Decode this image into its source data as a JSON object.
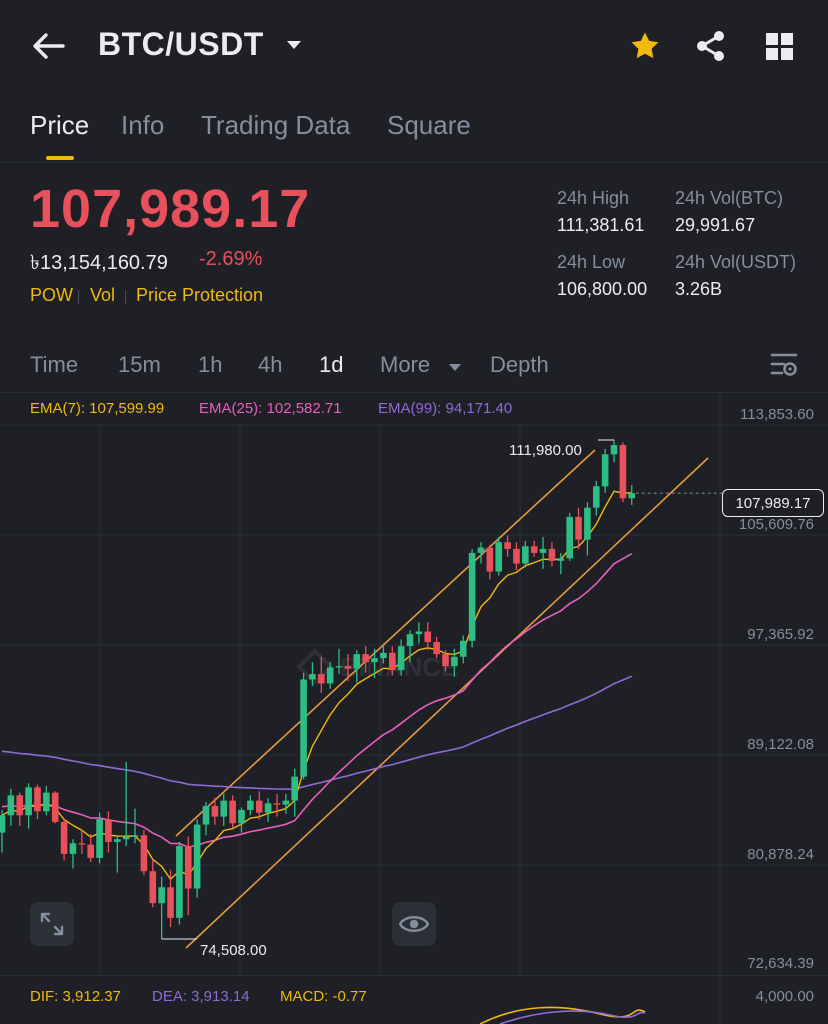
{
  "header": {
    "title": "BTC/USDT"
  },
  "tabs": [
    {
      "label": "Price",
      "active": true
    },
    {
      "label": "Info"
    },
    {
      "label": "Trading Data"
    },
    {
      "label": "Square"
    }
  ],
  "price": {
    "last": "107,989.17",
    "fiat": "৳13,154,160.79",
    "change": "-2.69%"
  },
  "tags": [
    "POW",
    "Vol",
    "Price Protection"
  ],
  "stats": {
    "high_label": "24h High",
    "high_value": "111,381.61",
    "volbtc_label": "24h Vol(BTC)",
    "volbtc_value": "29,991.67",
    "low_label": "24h Low",
    "low_value": "106,800.00",
    "volusdt_label": "24h Vol(USDT)",
    "volusdt_value": "3.26B"
  },
  "timeframes": [
    "Time",
    "15m",
    "1h",
    "4h",
    "1d",
    "More",
    "Depth"
  ],
  "active_timeframe": "1d",
  "ema": {
    "ema7": "EMA(7): 107,599.99",
    "ema25": "EMA(25): 102,582.71",
    "ema99": "EMA(99): 94,171.40"
  },
  "axis": [
    "113,853.60",
    "105,609.76",
    "97,365.92",
    "89,122.08",
    "80,878.24",
    "72,634.39"
  ],
  "markers": {
    "high": "111,980.00",
    "low": "74,508.00",
    "current": "107,989.17"
  },
  "macd": {
    "dif": "DIF: 3,912.37",
    "dea": "DEA: 3,913.14",
    "macd": "MACD: -0.77",
    "axis_top": "4,000.00"
  },
  "colors": {
    "up": "#2ebd85",
    "down": "#e8505b",
    "accent": "#f0b90b",
    "ema7": "#f0b90b",
    "ema25": "#e95fbb",
    "ema99": "#8e6bd6",
    "channel": "#e89a3c"
  },
  "chart_data": {
    "type": "candlestick",
    "y_axis_range": [
      72634.39,
      113853.6
    ],
    "candles": [
      [
        82500,
        84200,
        81000,
        83800
      ],
      [
        83800,
        85800,
        83000,
        85300
      ],
      [
        85300,
        85500,
        83000,
        83800
      ],
      [
        83800,
        86200,
        82800,
        85900
      ],
      [
        85900,
        86100,
        83500,
        84100
      ],
      [
        84100,
        86000,
        83800,
        85500
      ],
      [
        85500,
        85600,
        83200,
        83300
      ],
      [
        83300,
        83500,
        80400,
        80900
      ],
      [
        80900,
        82000,
        79800,
        81700
      ],
      [
        81700,
        82700,
        80900,
        81600
      ],
      [
        81600,
        82400,
        80300,
        80600
      ],
      [
        80600,
        84000,
        80200,
        83500
      ],
      [
        83500,
        84100,
        81000,
        81800
      ],
      [
        81800,
        82200,
        79500,
        82000
      ],
      [
        82000,
        87800,
        81500,
        82200
      ],
      [
        82200,
        84300,
        81700,
        82300
      ],
      [
        82300,
        82700,
        79300,
        79600
      ],
      [
        79600,
        80500,
        76900,
        77200
      ],
      [
        77200,
        79200,
        74508,
        78400
      ],
      [
        78400,
        79700,
        75400,
        76100
      ],
      [
        76100,
        81800,
        75600,
        81500
      ],
      [
        81500,
        82200,
        76300,
        78300
      ],
      [
        78300,
        83500,
        77600,
        83100
      ],
      [
        83100,
        84800,
        82300,
        84500
      ],
      [
        84500,
        85100,
        83100,
        83700
      ],
      [
        83700,
        85400,
        83000,
        84900
      ],
      [
        84900,
        85300,
        82800,
        83200
      ],
      [
        83200,
        84400,
        82500,
        84200
      ],
      [
        84200,
        85300,
        83800,
        84900
      ],
      [
        84900,
        85600,
        83500,
        84000
      ],
      [
        84000,
        85100,
        83300,
        84700
      ],
      [
        84700,
        85400,
        83700,
        84600
      ],
      [
        84600,
        85400,
        83900,
        84900
      ],
      [
        84900,
        87300,
        83700,
        86700
      ],
      [
        86700,
        94500,
        86500,
        94000
      ],
      [
        94000,
        95300,
        93500,
        94400
      ],
      [
        94400,
        95700,
        93000,
        93700
      ],
      [
        93700,
        95300,
        93300,
        94900
      ],
      [
        94900,
        96300,
        94400,
        95000
      ],
      [
        95000,
        95900,
        93900,
        94800
      ],
      [
        94800,
        96200,
        93800,
        95900
      ],
      [
        95900,
        96500,
        94500,
        95300
      ],
      [
        95300,
        96300,
        94100,
        95600
      ],
      [
        95600,
        96700,
        95200,
        96000
      ],
      [
        96000,
        96500,
        94300,
        94700
      ],
      [
        94700,
        97000,
        94300,
        96500
      ],
      [
        96500,
        97700,
        95300,
        97400
      ],
      [
        97400,
        98300,
        96700,
        97600
      ],
      [
        97600,
        98300,
        96200,
        96800
      ],
      [
        96800,
        97200,
        95600,
        95900
      ],
      [
        95900,
        96200,
        94600,
        95000
      ],
      [
        95000,
        96300,
        94200,
        95700
      ],
      [
        95700,
        97300,
        95200,
        96900
      ],
      [
        96900,
        103800,
        96400,
        103500
      ],
      [
        103500,
        104300,
        102700,
        103900
      ],
      [
        103900,
        104100,
        101500,
        102100
      ],
      [
        102100,
        104700,
        101800,
        104300
      ],
      [
        104300,
        104800,
        103200,
        103800
      ],
      [
        103800,
        104300,
        102200,
        102700
      ],
      [
        102700,
        104400,
        102400,
        104000
      ],
      [
        104000,
        104400,
        103200,
        103500
      ],
      [
        103500,
        104700,
        102300,
        103800
      ],
      [
        103800,
        104300,
        102500,
        102900
      ],
      [
        102900,
        103500,
        101900,
        103100
      ],
      [
        103100,
        106500,
        102900,
        106200
      ],
      [
        106200,
        106900,
        103800,
        104500
      ],
      [
        104500,
        107300,
        103300,
        106900
      ],
      [
        106900,
        108900,
        106300,
        108500
      ],
      [
        108500,
        111300,
        108000,
        110900
      ],
      [
        110900,
        111980,
        110300,
        111600
      ],
      [
        111600,
        111800,
        107300,
        107600
      ],
      [
        107600,
        108600,
        107100,
        107989
      ]
    ]
  }
}
